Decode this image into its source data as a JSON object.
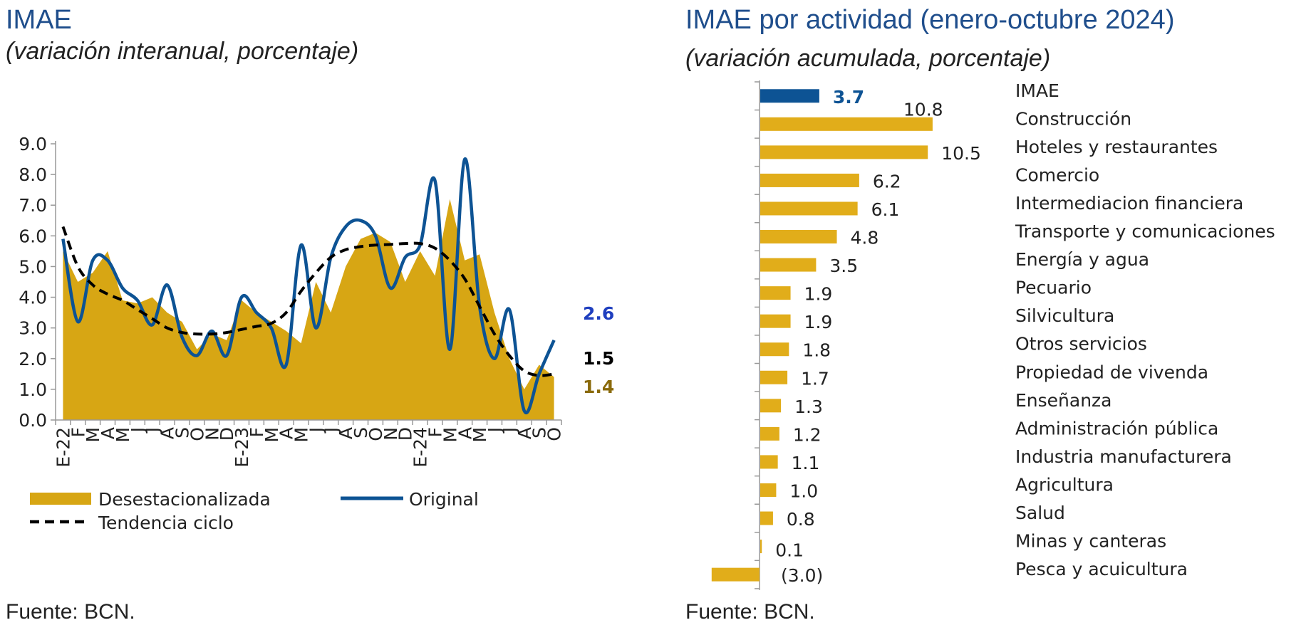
{
  "left": {
    "title": "IMAE",
    "subtitle": "(variación interanual, porcentaje)",
    "source": "Fuente: BCN."
  },
  "right": {
    "title": "IMAE por actividad (enero-octubre 2024)",
    "subtitle": "(variación acumulada, porcentaje)",
    "source": "Fuente: BCN."
  },
  "colors": {
    "gold": "#d7a614",
    "bar_gold": "#e1ad1a",
    "navy": "#0d5394",
    "end_blue": "#1f3fbf",
    "end_gold": "#8a6a0b",
    "text": "#222222",
    "axis": "#999999"
  },
  "chart_data": [
    {
      "type": "area",
      "ylim": [
        0,
        9
      ],
      "yticks": [
        "0.0",
        "1.0",
        "2.0",
        "3.0",
        "4.0",
        "5.0",
        "6.0",
        "7.0",
        "8.0",
        "9.0"
      ],
      "xtick_labels": [
        "E-22",
        "F",
        "M",
        "A",
        "M",
        "J",
        "J",
        "A",
        "S",
        "O",
        "N",
        "D",
        "E-23",
        "F",
        "M",
        "A",
        "M",
        "J",
        "J",
        "A",
        "S",
        "O",
        "N",
        "D",
        "E-24",
        "F",
        "M",
        "A",
        "M",
        "J",
        "J",
        "A",
        "S",
        "O"
      ],
      "legend": {
        "placement": "bottom",
        "items": [
          "Desestacionalizada",
          "Original",
          "Tendencia ciclo"
        ]
      },
      "series": [
        {
          "name": "Desestacionalizada",
          "style": "area",
          "values": [
            5.5,
            4.5,
            4.8,
            5.5,
            3.9,
            3.8,
            4.0,
            3.5,
            3.2,
            2.3,
            2.8,
            2.6,
            3.9,
            3.5,
            3.2,
            2.9,
            2.5,
            4.5,
            3.5,
            5.0,
            5.9,
            6.1,
            5.8,
            4.5,
            5.5,
            4.7,
            7.2,
            5.2,
            5.4,
            3.5,
            2.0,
            1.0,
            1.8,
            1.4
          ]
        },
        {
          "name": "Original",
          "style": "line",
          "values": [
            5.9,
            3.2,
            5.2,
            5.2,
            4.3,
            3.9,
            3.1,
            4.4,
            2.7,
            2.1,
            2.9,
            2.1,
            4.0,
            3.5,
            3.0,
            1.8,
            5.7,
            3.0,
            5.3,
            6.3,
            6.5,
            6.0,
            4.3,
            5.3,
            5.7,
            7.8,
            2.3,
            8.5,
            3.7,
            2.0,
            3.6,
            0.3,
            1.5,
            2.6
          ]
        },
        {
          "name": "Tendencia ciclo",
          "style": "dashed",
          "values": [
            6.3,
            5.0,
            4.4,
            4.1,
            3.9,
            3.6,
            3.3,
            3.0,
            2.85,
            2.8,
            2.8,
            2.85,
            2.95,
            3.05,
            3.15,
            3.5,
            4.2,
            4.8,
            5.3,
            5.55,
            5.65,
            5.7,
            5.72,
            5.75,
            5.75,
            5.6,
            5.2,
            4.6,
            3.7,
            2.8,
            2.1,
            1.6,
            1.45,
            1.5
          ]
        }
      ],
      "end_labels": [
        {
          "text": "2.6",
          "color": "#1f3fbf"
        },
        {
          "text": "1.5",
          "color": "#000000"
        },
        {
          "text": "1.4",
          "color": "#8a6a0b"
        }
      ]
    },
    {
      "type": "bar",
      "orientation": "horizontal",
      "categories": [
        "IMAE",
        "Construcción",
        "Hoteles y restaurantes",
        "Comercio",
        "Intermediacion financiera",
        "Transporte y comunicaciones",
        "Energía y agua",
        "Pecuario",
        "Silvicultura",
        "Otros servicios",
        "Propiedad de vivenda",
        "Enseñanza",
        "Administración pública",
        "Industria manufacturera",
        "Agricultura",
        "Salud",
        "Minas y canteras",
        "Pesca y acuicultura"
      ],
      "values": [
        3.7,
        10.8,
        10.5,
        6.2,
        6.1,
        4.8,
        3.5,
        1.9,
        1.9,
        1.8,
        1.7,
        1.3,
        1.2,
        1.1,
        1.0,
        0.8,
        0.1,
        -3.0
      ],
      "value_labels": [
        "3.7",
        "10.8",
        "10.5",
        "6.2",
        "6.1",
        "4.8",
        "3.5",
        "1.9",
        "1.9",
        "1.8",
        "1.7",
        "1.3",
        "1.2",
        "1.1",
        "1.0",
        "0.8",
        "0.1",
        "(3.0)"
      ],
      "highlight": "IMAE"
    }
  ]
}
